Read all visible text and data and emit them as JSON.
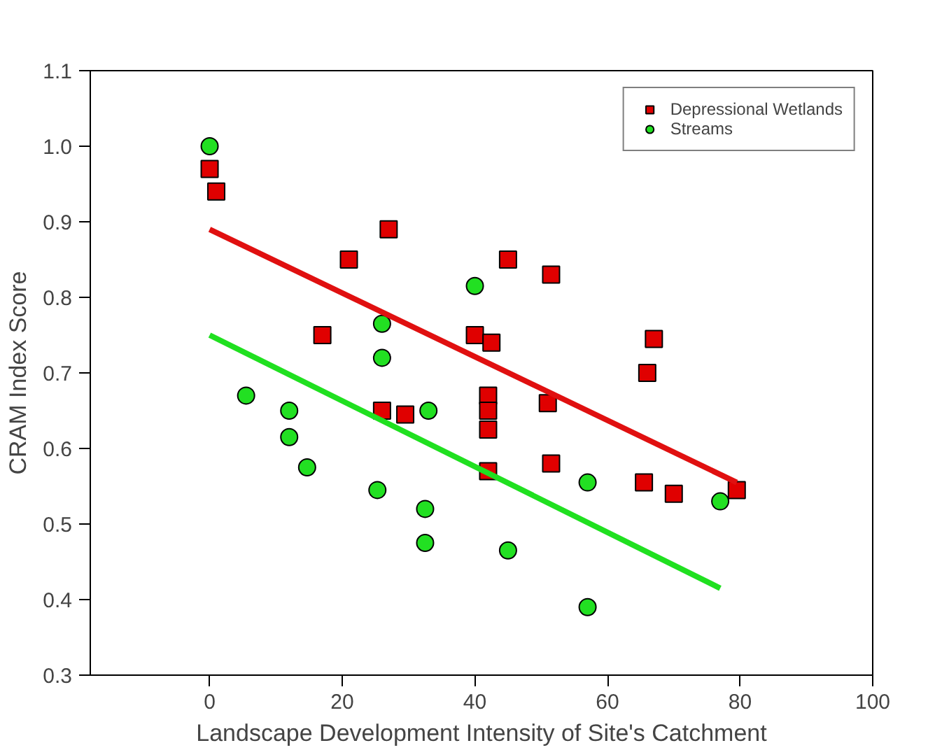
{
  "chart_data": {
    "type": "scatter",
    "xlabel": "Landscape Development Intensity of Site's Catchment",
    "ylabel": "CRAM Index Score",
    "xlim": [
      -18,
      100
    ],
    "ylim": [
      0.3,
      1.1
    ],
    "xticks": [
      0,
      20,
      40,
      60,
      80,
      100
    ],
    "yticks": [
      {
        "value": 0.3,
        "label": "0.3"
      },
      {
        "value": 0.4,
        "label": "0.4"
      },
      {
        "value": 0.5,
        "label": "0.5"
      },
      {
        "value": 0.6,
        "label": "0.6"
      },
      {
        "value": 0.7,
        "label": "0.7"
      },
      {
        "value": 0.8,
        "label": "0.8"
      },
      {
        "value": 0.9,
        "label": "0.9"
      },
      {
        "value": 1.0,
        "label": "1.0"
      },
      {
        "value": 1.1,
        "label": "1.1"
      }
    ],
    "grid": false,
    "legend": "top right",
    "series": [
      {
        "name": "Depressional Wetlands",
        "color": "#e00000",
        "marker": "square",
        "x": [
          0,
          1,
          21,
          27,
          17,
          26,
          29.5,
          40,
          42.5,
          42,
          42,
          42,
          42,
          45,
          51.5,
          67,
          66,
          51,
          51.5,
          65.5,
          70,
          79.5
        ],
        "values": [
          0.97,
          0.94,
          0.85,
          0.89,
          0.75,
          0.65,
          0.645,
          0.75,
          0.74,
          0.67,
          0.65,
          0.625,
          0.57,
          0.85,
          0.83,
          0.745,
          0.7,
          0.66,
          0.58,
          0.555,
          0.54,
          0.545
        ]
      },
      {
        "name": "Streams",
        "color": "#22e022",
        "marker": "circle",
        "x": [
          0,
          5.5,
          12,
          12,
          14.7,
          25.3,
          26,
          26,
          33,
          32.5,
          32.5,
          40,
          45,
          57,
          57,
          77
        ],
        "values": [
          1.0,
          0.67,
          0.65,
          0.615,
          0.575,
          0.545,
          0.765,
          0.72,
          0.65,
          0.52,
          0.475,
          0.815,
          0.465,
          0.555,
          0.39,
          0.53
        ]
      },
      {
        "type": "line",
        "color": "#e01010",
        "x": [
          0,
          79.5
        ],
        "values": [
          0.89,
          0.555
        ]
      },
      {
        "type": "line",
        "color": "#20e020",
        "x": [
          0,
          77
        ],
        "values": [
          0.75,
          0.415
        ]
      }
    ]
  }
}
